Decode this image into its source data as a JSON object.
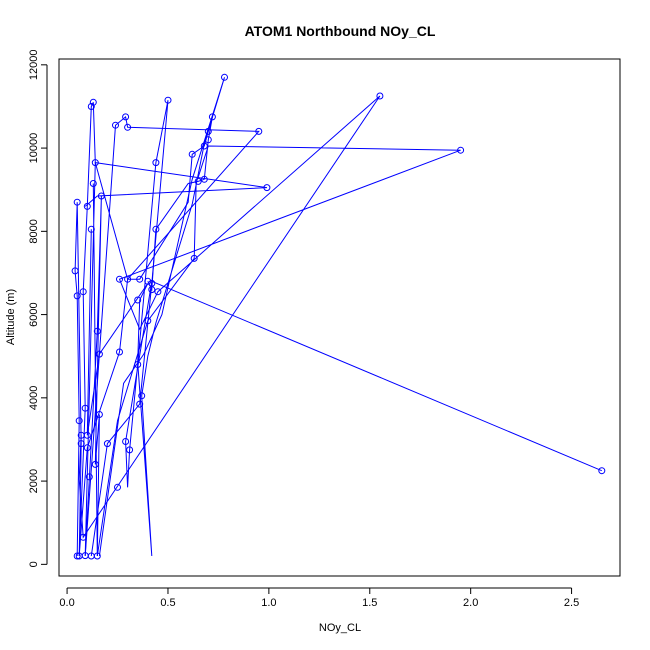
{
  "chart_data": {
    "type": "line",
    "title": "ATOM1 Northbound NOy_CL",
    "xlabel": "NOy_CL",
    "ylabel": "Altitude (m)",
    "xlim": [
      -0.04,
      2.74
    ],
    "ylim": [
      -280,
      12140
    ],
    "x_ticks": [
      0.0,
      0.5,
      1.0,
      1.5,
      2.0,
      2.5
    ],
    "x_tick_labels": [
      "0.0",
      "0.5",
      "1.0",
      "1.5",
      "2.0",
      "2.5"
    ],
    "y_ticks": [
      0,
      2000,
      4000,
      6000,
      8000,
      10000,
      12000
    ],
    "y_tick_labels": [
      "0",
      "2000",
      "4000",
      "6000",
      "8000",
      "10000",
      "12000"
    ],
    "grid": false,
    "legend": "none",
    "series_color": "#0000ff",
    "series": [
      {
        "x": [
          0.05,
          0.06,
          0.05,
          0.04,
          0.05,
          0.07,
          0.06,
          0.09,
          0.08,
          0.1,
          0.12,
          0.13,
          0.14,
          0.09,
          0.15,
          0.17,
          0.14,
          0.16,
          0.15,
          0.13
        ],
        "y": [
          200,
          3450,
          6450,
          7050,
          8700,
          2900,
          200,
          3750,
          6550,
          8600,
          11000,
          11100,
          9650,
          210,
          5600,
          8850,
          2400,
          3600,
          200,
          9150
        ]
      },
      {
        "x": [
          0.06,
          0.1,
          0.26,
          0.3,
          0.36,
          0.6,
          0.62,
          0.68,
          0.7,
          0.72,
          0.7,
          0.68,
          0.65,
          0.6,
          0.44,
          0.42,
          0.4
        ],
        "y": [
          200,
          2800,
          5100,
          6850,
          6850,
          8700,
          9850,
          10050,
          10400,
          10750,
          10200,
          9250,
          9200,
          9150,
          8050,
          6600,
          6800
        ]
      },
      {
        "x": [
          0.09,
          0.24,
          0.29,
          0.3,
          0.95,
          0.3,
          0.14,
          0.99,
          0.15,
          0.09
        ],
        "y": [
          200,
          10550,
          10750,
          10500,
          10400,
          6850,
          9650,
          9050,
          8850,
          8600
        ]
      },
      {
        "x": [
          0.12,
          0.2,
          0.36,
          0.42,
          0.5,
          0.44,
          0.35,
          0.31,
          0.3,
          0.29,
          0.42,
          2.65
        ],
        "y": [
          200,
          2900,
          3850,
          6750,
          11150,
          9650,
          4800,
          2750,
          1850,
          2950,
          6800,
          2250
        ]
      },
      {
        "x": [
          0.15,
          0.25,
          0.4,
          0.63,
          0.64,
          0.65,
          0.7,
          1.95,
          0.26,
          0.36,
          0.45,
          1.55,
          0.08,
          0.06,
          0.07
        ],
        "y": [
          200,
          3450,
          5850,
          7350,
          9200,
          9300,
          10050,
          9950,
          6850,
          5650,
          6550,
          11250,
          650,
          2050,
          3100
        ]
      },
      {
        "x": [
          0.16,
          0.28,
          0.38,
          0.47,
          0.62,
          0.78,
          0.68,
          0.62,
          0.44,
          0.4,
          0.37,
          0.42,
          0.35,
          0.36,
          0.4,
          0.16,
          0.1,
          0.12
        ],
        "y": [
          200,
          4350,
          5050,
          6000,
          9250,
          11700,
          10100,
          8650,
          5800,
          5000,
          4050,
          200,
          4850,
          6350,
          6750,
          5050,
          3100,
          8050
        ]
      }
    ],
    "markers": {
      "x": [
        0.05,
        0.06,
        0.05,
        0.04,
        0.05,
        0.07,
        0.06,
        0.09,
        0.08,
        0.1,
        0.12,
        0.13,
        0.14,
        0.09,
        0.15,
        0.17,
        0.14,
        0.16,
        0.15,
        0.13,
        0.1,
        0.26,
        0.3,
        0.36,
        0.62,
        0.68,
        0.7,
        0.72,
        0.7,
        0.68,
        0.65,
        0.44,
        0.42,
        0.4,
        0.24,
        0.29,
        0.3,
        0.95,
        0.99,
        0.12,
        0.2,
        0.36,
        0.42,
        0.5,
        0.44,
        0.35,
        0.31,
        0.29,
        2.65,
        0.25,
        0.4,
        0.63,
        1.95,
        0.26,
        0.45,
        1.55,
        0.08,
        0.07,
        0.16,
        0.78,
        0.37,
        0.35,
        0.1,
        0.12,
        0.11
      ],
      "y": [
        200,
        3450,
        6450,
        7050,
        8700,
        2900,
        200,
        3750,
        6550,
        8600,
        11000,
        11100,
        9650,
        210,
        5600,
        8850,
        2400,
        3600,
        200,
        9150,
        2800,
        5100,
        6850,
        6850,
        9850,
        10050,
        10400,
        10750,
        10200,
        9250,
        9200,
        8050,
        6600,
        6800,
        10550,
        10750,
        10500,
        10400,
        9050,
        200,
        2900,
        3850,
        6750,
        11150,
        9650,
        4800,
        2750,
        2950,
        2250,
        1850,
        5850,
        7350,
        9950,
        6850,
        6550,
        11250,
        650,
        3100,
        5050,
        11700,
        4050,
        6350,
        3100,
        8050,
        2100
      ]
    }
  }
}
